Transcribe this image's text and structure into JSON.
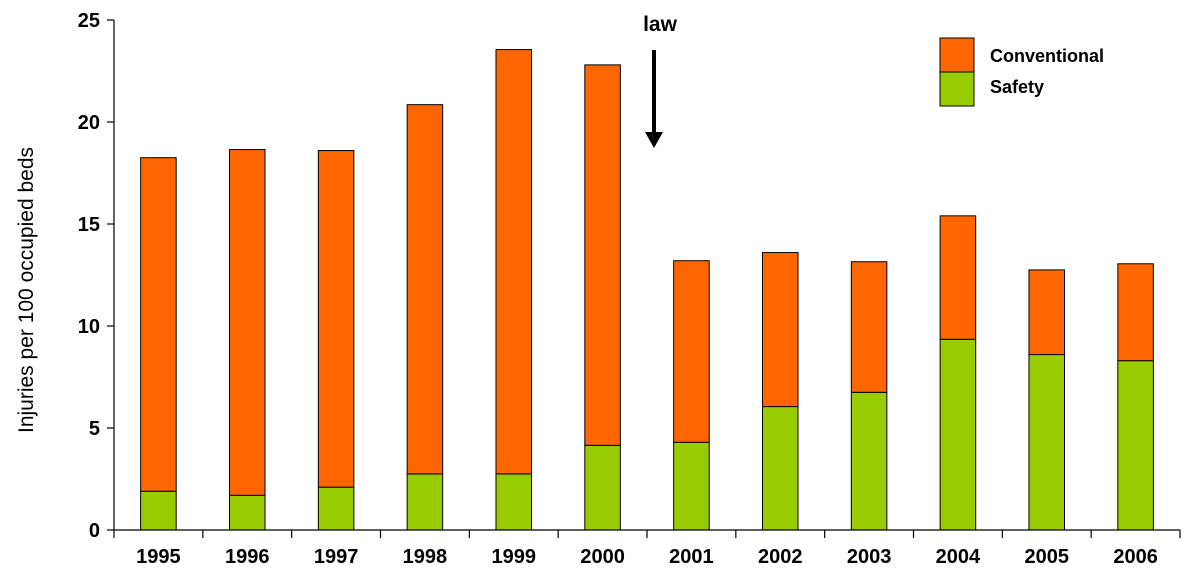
{
  "chart_data": {
    "type": "bar",
    "stacked": true,
    "categories": [
      "1995",
      "1996",
      "1997",
      "1998",
      "1999",
      "2000",
      "2001",
      "2002",
      "2003",
      "2004",
      "2005",
      "2006"
    ],
    "series": [
      {
        "name": "Safety",
        "color": "#99CC00",
        "values": [
          1.9,
          1.7,
          2.1,
          2.75,
          2.75,
          4.15,
          4.3,
          6.05,
          6.75,
          9.35,
          8.6,
          8.3
        ]
      },
      {
        "name": "Conventional",
        "color": "#FF6600",
        "values": [
          16.35,
          16.95,
          16.5,
          18.1,
          20.8,
          18.65,
          8.9,
          7.55,
          6.4,
          6.05,
          4.15,
          4.75
        ]
      }
    ],
    "ylabel": "Injuries per 100 occupied beds",
    "xlabel": "",
    "ylim": [
      0,
      25
    ],
    "yticks": [
      0,
      5,
      10,
      15,
      20,
      25
    ],
    "legend": {
      "position": "top-right",
      "entries": [
        "Conventional",
        "Safety"
      ]
    },
    "annotation": {
      "text": "law",
      "at": "between 2000 and 2001",
      "icon": "down-arrow-icon"
    },
    "grid": false
  }
}
